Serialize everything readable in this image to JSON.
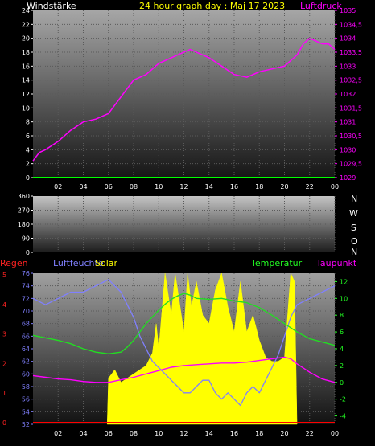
{
  "header": {
    "left_label": "Windstärke",
    "title": "24 hour graph day : Maj 17 2023",
    "right_label": "Luftdruck"
  },
  "panel2": {
    "direction_labels": [
      "N",
      "W",
      "S",
      "O",
      "N"
    ]
  },
  "panel3": {
    "label_regen": "Regen",
    "label_luftfeuchte": "Luftfeuchte",
    "label_solar": "Solar",
    "label_temperatur": "Temperatur",
    "label_taupunkt": "Taupunkt"
  },
  "colors": {
    "wind": "#00ff00",
    "pressure": "#ff00ff",
    "humidity": "#8080ff",
    "temperature": "#22dd22",
    "dewpoint": "#ff00ff",
    "solar": "#ffff00",
    "rain": "#ff0000",
    "title": "#ffff00",
    "axis_left3": "#8080ff",
    "axis_right3": "#22ff22"
  },
  "chart_data": [
    {
      "type": "line",
      "xticks": [
        "02",
        "04",
        "06",
        "08",
        "10",
        "12",
        "14",
        "16",
        "18",
        "20",
        "22",
        "00"
      ],
      "y_left_ticks": [
        "0",
        "2",
        "4",
        "6",
        "8",
        "10",
        "12",
        "14",
        "16",
        "18",
        "20",
        "22",
        "24"
      ],
      "y_left_lim": [
        0,
        24
      ],
      "y_right_ticks": [
        "1029",
        "1029,5",
        "1030",
        "1030,5",
        "1031",
        "1031,5",
        "1032",
        "1032,5",
        "1033",
        "1033,5",
        "1034",
        "1034,5",
        "1035"
      ],
      "y_right_lim": [
        1029,
        1035
      ],
      "series": [
        {
          "axis": "right",
          "x": [
            0,
            0.5,
            1,
            2,
            3,
            4,
            5,
            6,
            7,
            8,
            9,
            10,
            11,
            12,
            12.5,
            13,
            14,
            15,
            16,
            17,
            18,
            19,
            20,
            21,
            21.5,
            22,
            22.5,
            23,
            23.5,
            24
          ],
          "values": [
            1029.6,
            1029.9,
            1030.0,
            1030.3,
            1030.7,
            1031.0,
            1031.1,
            1031.3,
            1031.9,
            1032.5,
            1032.7,
            1033.1,
            1033.3,
            1033.5,
            1033.6,
            1033.5,
            1033.3,
            1033.0,
            1032.7,
            1032.6,
            1032.8,
            1032.9,
            1033.0,
            1033.4,
            1033.8,
            1034.0,
            1033.9,
            1033.8,
            1033.8,
            1033.6
          ]
        },
        {
          "axis": "left",
          "x": [
            0,
            24
          ],
          "values": [
            0,
            0
          ]
        }
      ]
    },
    {
      "type": "scatter",
      "y_ticks": [
        "0",
        "90",
        "180",
        "270",
        "360"
      ],
      "ylim": [
        0,
        360
      ],
      "x": [],
      "values": []
    },
    {
      "type": "line",
      "xticks": [
        "02",
        "04",
        "06",
        "08",
        "10",
        "12",
        "14",
        "16",
        "18",
        "20",
        "22",
        "00"
      ],
      "y_left_ticks": [
        "52",
        "54",
        "56",
        "58",
        "60",
        "62",
        "64",
        "66",
        "68",
        "70",
        "72",
        "74",
        "76"
      ],
      "y_left_lim": [
        52,
        76
      ],
      "y_right_ticks": [
        "-4",
        "-2",
        "0",
        "2",
        "4",
        "6",
        "8",
        "10",
        "12"
      ],
      "y_right_lim": [
        -5,
        13
      ],
      "rain_ticks": [
        "0",
        "1",
        "2",
        "3",
        "4",
        "5"
      ],
      "series": [
        {
          "name": "Luftfeuchte",
          "axis": "left",
          "x": [
            0,
            1,
            2,
            3,
            4,
            5,
            6,
            6.5,
            7,
            7.5,
            8,
            8.5,
            9,
            9.5,
            10,
            10.5,
            11,
            11.5,
            12,
            12.5,
            13,
            13.5,
            14,
            14.5,
            15,
            15.5,
            16,
            16.5,
            17,
            17.5,
            18,
            18.5,
            19,
            19.5,
            20,
            20.5,
            21,
            22,
            23,
            24
          ],
          "values": [
            72,
            71,
            72,
            73,
            73,
            74,
            75,
            74,
            73,
            71,
            69,
            66,
            64,
            62,
            61,
            60,
            59,
            58,
            57,
            57,
            58,
            59,
            59,
            57,
            56,
            57,
            56,
            55,
            57,
            58,
            57,
            59,
            61,
            63,
            66,
            69,
            71,
            72,
            73,
            74
          ]
        },
        {
          "name": "Temperatur",
          "axis": "right",
          "x": [
            0,
            1,
            2,
            3,
            4,
            5,
            6,
            7,
            7.5,
            8,
            8.5,
            9,
            9.5,
            10,
            10.5,
            11,
            11.5,
            12,
            12.5,
            13,
            14,
            15,
            16,
            17,
            18,
            19,
            20,
            21,
            22,
            23,
            24
          ],
          "values": [
            5.6,
            5.3,
            5.0,
            4.6,
            4.0,
            3.6,
            3.4,
            3.6,
            4.2,
            5.0,
            6.0,
            7.0,
            7.8,
            8.6,
            9.3,
            9.9,
            10.3,
            10.6,
            10.4,
            10.0,
            9.9,
            10.0,
            9.7,
            9.5,
            8.9,
            8.0,
            7.0,
            6.0,
            5.2,
            4.8,
            4.4
          ]
        },
        {
          "name": "Taupunkt",
          "axis": "right",
          "x": [
            0,
            1,
            2,
            3,
            4,
            5,
            6,
            7,
            8,
            9,
            10,
            11,
            12,
            13,
            14,
            15,
            16,
            17,
            18,
            19,
            20,
            20.5,
            21,
            22,
            23,
            24
          ],
          "values": [
            0.8,
            0.6,
            0.4,
            0.3,
            0.1,
            0.0,
            0.0,
            0.3,
            0.6,
            1.0,
            1.4,
            1.8,
            2.0,
            2.1,
            2.2,
            2.3,
            2.3,
            2.4,
            2.6,
            2.8,
            3.0,
            2.8,
            2.2,
            1.2,
            0.4,
            0.0
          ]
        },
        {
          "name": "Solar",
          "axis": "right",
          "x": [
            5.9,
            6.0,
            6.5,
            7.0,
            7.5,
            8.0,
            8.5,
            9.0,
            9.5,
            9.8,
            10.0,
            10.5,
            11.0,
            11.3,
            11.6,
            12.0,
            12.3,
            12.6,
            13.0,
            13.5,
            14.0,
            14.5,
            15.0,
            15.5,
            16.0,
            16.5,
            17.0,
            17.5,
            18.0,
            18.5,
            19.0,
            19.5,
            20.0,
            20.5,
            20.8,
            21.0
          ],
          "values": [
            -5,
            0.5,
            1.5,
            0.0,
            0.5,
            1.0,
            1.5,
            2.0,
            3.5,
            7.0,
            4.0,
            13.0,
            8.0,
            13.0,
            10.0,
            6.0,
            13.0,
            9.0,
            12.0,
            8.0,
            7.0,
            11.0,
            13.0,
            9.0,
            6.0,
            12.0,
            6.0,
            8.0,
            5.0,
            3.0,
            2.5,
            2.5,
            3.0,
            13.0,
            12.0,
            -5
          ]
        },
        {
          "name": "Regen",
          "axis": "rain",
          "x": [
            0,
            24
          ],
          "values": [
            0,
            0
          ]
        }
      ]
    }
  ]
}
